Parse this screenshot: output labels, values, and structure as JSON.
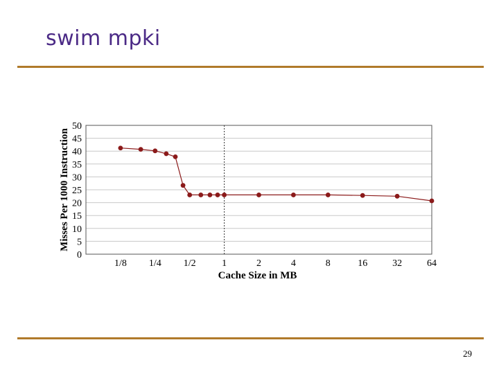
{
  "slide": {
    "title": "swim mpki",
    "page_number": "29"
  },
  "colors": {
    "title": "#4b2a86",
    "rule": "#b07a2a",
    "series": "#8b1a1a",
    "grid": "#c8c8c8"
  },
  "chart_data": {
    "type": "line",
    "title": "",
    "xlabel": "Cache Size in MB",
    "ylabel": "Misses Per 1000 Instruction",
    "x_scale": "log2",
    "x_ticks": [
      {
        "value": 0.125,
        "label": "1/8"
      },
      {
        "value": 0.25,
        "label": "1/4"
      },
      {
        "value": 0.5,
        "label": "1/2"
      },
      {
        "value": 1,
        "label": "1"
      },
      {
        "value": 2,
        "label": "2"
      },
      {
        "value": 4,
        "label": "4"
      },
      {
        "value": 8,
        "label": "8"
      },
      {
        "value": 16,
        "label": "16"
      },
      {
        "value": 32,
        "label": "32"
      },
      {
        "value": 64,
        "label": "64"
      }
    ],
    "xlim": [
      0.0625,
      64
    ],
    "ylim": [
      0,
      50
    ],
    "y_ticks": [
      0,
      5,
      10,
      15,
      20,
      25,
      30,
      35,
      40,
      45,
      50
    ],
    "grid": "horizontal",
    "reference_line_x": 1,
    "series": [
      {
        "x": [
          0.125,
          0.1875,
          0.25,
          0.3125,
          0.375,
          0.4375,
          0.5,
          0.625,
          0.75,
          0.875,
          1,
          2,
          4,
          8,
          16,
          32,
          64
        ],
        "y": [
          41.2,
          40.7,
          40.1,
          39.0,
          37.8,
          26.7,
          23.0,
          23.0,
          23.0,
          23.0,
          23.0,
          23.0,
          23.0,
          23.0,
          22.8,
          22.5,
          20.7
        ]
      }
    ]
  }
}
